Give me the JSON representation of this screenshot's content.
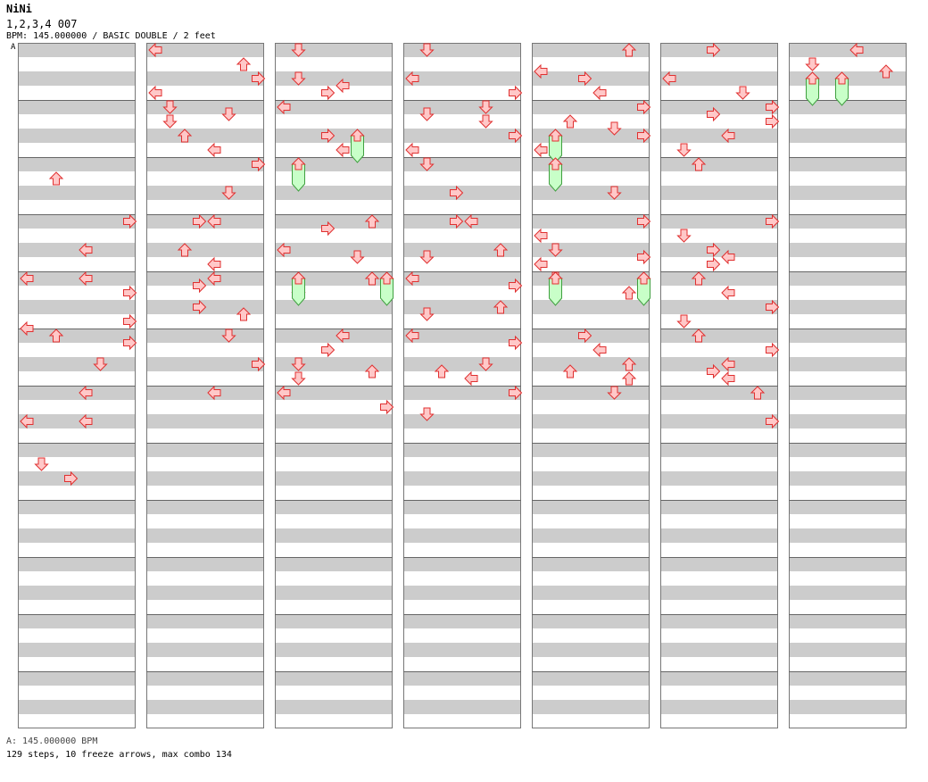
{
  "header": {
    "song_title": "NiNi",
    "subtitle": "1,2,3,4 007",
    "info": "BPM: 145.000000 / BASIC DOUBLE / 2 feet",
    "marker": "A"
  },
  "footer": {
    "bpm_line": "A: 145.000000 BPM",
    "stats_line": "129 steps, 10 freeze arrows, max combo 134"
  },
  "colors": {
    "arrow_fill": "#ffc8c8",
    "arrow_stroke": "#e03030",
    "freeze_fill": "#c8ffc8",
    "freeze_stroke": "#40a040"
  },
  "chart": {
    "columns": 7,
    "measures_per_column": 12,
    "lanes": 8,
    "notes": [
      [
        0,
        4,
        2,
        "U"
      ],
      [
        0,
        6,
        0,
        "R"
      ],
      [
        0,
        7,
        0,
        "L"
      ],
      [
        0,
        8,
        0,
        "L"
      ],
      [
        0,
        8,
        0,
        "L"
      ],
      [
        0,
        8,
        2,
        "R"
      ],
      [
        0,
        9,
        2,
        "R"
      ],
      [
        0,
        9,
        3,
        "L"
      ],
      [
        0,
        10,
        0,
        "U"
      ],
      [
        0,
        10,
        1,
        "R"
      ],
      [
        0,
        11,
        0,
        "D"
      ],
      [
        0,
        12,
        0,
        "L"
      ],
      [
        0,
        13,
        0,
        "L"
      ],
      [
        0,
        13,
        0,
        "L"
      ],
      [
        0,
        14,
        2,
        "D"
      ],
      [
        0,
        15,
        0,
        "R"
      ],
      [
        1,
        0,
        0,
        "L"
      ],
      [
        1,
        0,
        2,
        "U"
      ],
      [
        1,
        1,
        0,
        "R"
      ],
      [
        1,
        1,
        2,
        "L"
      ],
      [
        1,
        2,
        0,
        "D"
      ],
      [
        1,
        2,
        1,
        "D"
      ],
      [
        1,
        2,
        2,
        "D"
      ],
      [
        1,
        3,
        0,
        "U"
      ],
      [
        1,
        3,
        2,
        "L"
      ],
      [
        1,
        4,
        0,
        "R"
      ],
      [
        1,
        5,
        0,
        "D"
      ],
      [
        1,
        6,
        0,
        "L"
      ],
      [
        1,
        6,
        0,
        "R"
      ],
      [
        1,
        7,
        0,
        "U"
      ],
      [
        1,
        7,
        2,
        "L"
      ],
      [
        1,
        8,
        0,
        "L"
      ],
      [
        1,
        8,
        1,
        "R"
      ],
      [
        1,
        9,
        0,
        "R"
      ],
      [
        1,
        9,
        1,
        "U"
      ],
      [
        1,
        10,
        0,
        "D"
      ],
      [
        1,
        11,
        0,
        "R"
      ],
      [
        1,
        12,
        0,
        "L"
      ],
      [
        2,
        0,
        0,
        "D"
      ],
      [
        2,
        1,
        0,
        "D"
      ],
      [
        2,
        1,
        1,
        "L"
      ],
      [
        2,
        1,
        2,
        "R"
      ],
      [
        2,
        2,
        0,
        "L"
      ],
      [
        2,
        3,
        0,
        "R"
      ],
      [
        2,
        3,
        2,
        "L"
      ],
      [
        2,
        6,
        0,
        "U"
      ],
      [
        2,
        6,
        1,
        "R"
      ],
      [
        2,
        7,
        0,
        "L"
      ],
      [
        2,
        7,
        1,
        "D"
      ],
      [
        2,
        8,
        0,
        "U"
      ],
      [
        2,
        8,
        2,
        "D"
      ],
      [
        2,
        10,
        0,
        "L"
      ],
      [
        2,
        10,
        2,
        "R"
      ],
      [
        2,
        11,
        0,
        "D"
      ],
      [
        2,
        11,
        1,
        "U"
      ],
      [
        2,
        11,
        2,
        "D"
      ],
      [
        2,
        12,
        0,
        "L"
      ],
      [
        2,
        12,
        2,
        "R"
      ],
      [
        3,
        0,
        0,
        "D"
      ],
      [
        3,
        1,
        0,
        "L"
      ],
      [
        3,
        1,
        2,
        "R"
      ],
      [
        3,
        2,
        0,
        "D"
      ],
      [
        3,
        2,
        1,
        "D"
      ],
      [
        3,
        2,
        2,
        "D"
      ],
      [
        3,
        3,
        0,
        "R"
      ],
      [
        3,
        3,
        2,
        "L"
      ],
      [
        3,
        4,
        0,
        "D"
      ],
      [
        3,
        5,
        0,
        "R"
      ],
      [
        3,
        6,
        0,
        "R"
      ],
      [
        3,
        6,
        0,
        "L"
      ],
      [
        3,
        7,
        0,
        "U"
      ],
      [
        3,
        7,
        1,
        "D"
      ],
      [
        3,
        8,
        0,
        "L"
      ],
      [
        3,
        8,
        1,
        "R"
      ],
      [
        3,
        9,
        0,
        "U"
      ],
      [
        3,
        9,
        1,
        "D"
      ],
      [
        3,
        10,
        0,
        "L"
      ],
      [
        3,
        10,
        1,
        "R"
      ],
      [
        3,
        11,
        0,
        "D"
      ],
      [
        3,
        11,
        1,
        "U"
      ],
      [
        3,
        11,
        2,
        "L"
      ],
      [
        3,
        12,
        0,
        "R"
      ],
      [
        3,
        12,
        3,
        "D"
      ],
      [
        4,
        0,
        0,
        "U"
      ],
      [
        4,
        0,
        3,
        "L"
      ],
      [
        4,
        1,
        0,
        "R"
      ],
      [
        4,
        1,
        2,
        "L"
      ],
      [
        4,
        2,
        0,
        "R"
      ],
      [
        4,
        2,
        2,
        "U"
      ],
      [
        4,
        2,
        3,
        "D"
      ],
      [
        4,
        3,
        0,
        "R"
      ],
      [
        4,
        3,
        2,
        "L"
      ],
      [
        4,
        5,
        0,
        "D"
      ],
      [
        4,
        6,
        0,
        "R"
      ],
      [
        4,
        6,
        2,
        "L"
      ],
      [
        4,
        7,
        0,
        "D"
      ],
      [
        4,
        7,
        1,
        "R"
      ],
      [
        4,
        7,
        2,
        "L"
      ],
      [
        4,
        8,
        0,
        "D"
      ],
      [
        4,
        8,
        2,
        "U"
      ],
      [
        4,
        10,
        0,
        "R"
      ],
      [
        4,
        10,
        2,
        "L"
      ],
      [
        4,
        11,
        0,
        "U"
      ],
      [
        4,
        11,
        1,
        "U"
      ],
      [
        4,
        11,
        2,
        "U"
      ],
      [
        4,
        12,
        0,
        "D"
      ],
      [
        5,
        0,
        0,
        "R"
      ],
      [
        5,
        1,
        0,
        "L"
      ],
      [
        5,
        1,
        2,
        "D"
      ],
      [
        5,
        2,
        0,
        "R"
      ],
      [
        5,
        2,
        1,
        "R"
      ],
      [
        5,
        2,
        2,
        "R"
      ],
      [
        5,
        3,
        0,
        "L"
      ],
      [
        5,
        3,
        2,
        "D"
      ],
      [
        5,
        4,
        0,
        "U"
      ],
      [
        5,
        6,
        0,
        "R"
      ],
      [
        5,
        6,
        2,
        "D"
      ],
      [
        5,
        7,
        0,
        "R"
      ],
      [
        5,
        7,
        1,
        "L"
      ],
      [
        5,
        7,
        2,
        "R"
      ],
      [
        5,
        8,
        0,
        "U"
      ],
      [
        5,
        8,
        2,
        "L"
      ],
      [
        5,
        9,
        0,
        "R"
      ],
      [
        5,
        9,
        2,
        "D"
      ],
      [
        5,
        10,
        0,
        "U"
      ],
      [
        5,
        10,
        2,
        "R"
      ],
      [
        5,
        11,
        0,
        "L"
      ],
      [
        5,
        11,
        1,
        "R"
      ],
      [
        5,
        11,
        2,
        "L"
      ],
      [
        5,
        12,
        0,
        "U"
      ],
      [
        5,
        13,
        0,
        "R"
      ],
      [
        6,
        0,
        0,
        "L"
      ],
      [
        6,
        0,
        2,
        "D"
      ],
      [
        6,
        0,
        3,
        "U"
      ]
    ],
    "freezes": [
      [
        2,
        3,
        2
      ],
      [
        2,
        4,
        0
      ],
      [
        2,
        8,
        0
      ],
      [
        2,
        8,
        3
      ],
      [
        4,
        3,
        0
      ],
      [
        4,
        4,
        0
      ],
      [
        4,
        8,
        0
      ],
      [
        4,
        8,
        3
      ],
      [
        6,
        1,
        0
      ],
      [
        6,
        1,
        1
      ]
    ]
  }
}
